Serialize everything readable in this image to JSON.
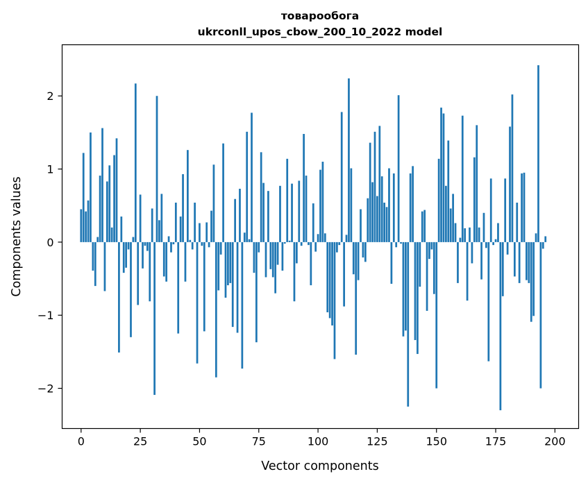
{
  "chart_data": {
    "type": "bar",
    "title": "товарообога",
    "subtitle": "ukrconll_upos_cbow_200_10_2022 model",
    "xlabel": "Vector components",
    "ylabel": "Components values",
    "xlim": [
      -8,
      210
    ],
    "ylim": [
      -2.55,
      2.7
    ],
    "xticks": [
      0,
      25,
      50,
      75,
      100,
      125,
      150,
      175,
      200
    ],
    "yticks": [
      -2,
      -1,
      0,
      1,
      2
    ],
    "ytick_labels": [
      "−2",
      "−1",
      "0",
      "1",
      "2"
    ],
    "grid": false,
    "bar_color": "#1f77b4",
    "x_start": 0,
    "values": [
      0.45,
      1.22,
      0.42,
      0.57,
      1.5,
      -0.39,
      -0.6,
      0.07,
      0.91,
      1.56,
      -0.67,
      0.83,
      1.05,
      0.2,
      1.19,
      1.42,
      -1.51,
      0.35,
      -0.42,
      -0.35,
      -0.1,
      -1.3,
      0.07,
      2.17,
      -0.86,
      0.65,
      -0.36,
      -0.05,
      -0.12,
      -0.81,
      0.46,
      -2.09,
      2.0,
      0.3,
      0.66,
      -0.47,
      -0.54,
      0.08,
      -0.14,
      -0.03,
      0.54,
      -1.25,
      0.35,
      0.93,
      -0.54,
      1.26,
      0.03,
      -0.1,
      0.54,
      -1.66,
      0.26,
      -0.05,
      -1.22,
      0.27,
      -0.07,
      0.43,
      1.06,
      -1.85,
      -0.66,
      -0.17,
      1.35,
      -0.76,
      -0.59,
      -0.56,
      -1.16,
      0.59,
      -1.24,
      0.73,
      -1.73,
      0.13,
      1.51,
      0.04,
      1.77,
      -0.42,
      -1.37,
      -0.14,
      1.23,
      0.81,
      -0.48,
      0.7,
      -0.37,
      -0.48,
      -0.7,
      -0.31,
      0.77,
      -0.39,
      -0.02,
      1.14,
      0.02,
      0.8,
      -0.81,
      -0.29,
      0.84,
      -0.05,
      1.48,
      0.91,
      -0.04,
      -0.59,
      0.53,
      -0.13,
      0.11,
      0.99,
      1.1,
      0.12,
      -0.96,
      -1.04,
      -1.14,
      -1.6,
      -0.14,
      -0.04,
      1.78,
      -0.88,
      0.1,
      2.24,
      1.01,
      -0.44,
      -1.54,
      -0.52,
      0.45,
      -0.21,
      -0.27,
      0.6,
      1.36,
      0.82,
      1.51,
      0.63,
      1.59,
      0.9,
      0.54,
      0.48,
      1.01,
      -0.57,
      0.94,
      -0.07,
      2.01,
      -0.02,
      -1.29,
      -1.21,
      -2.25,
      0.94,
      1.04,
      -1.34,
      -1.53,
      -0.61,
      0.42,
      0.44,
      -0.94,
      -0.23,
      -0.1,
      -0.71,
      -2.0,
      1.14,
      1.84,
      1.76,
      0.77,
      1.39,
      0.46,
      0.66,
      0.26,
      -0.56,
      0.06,
      1.73,
      0.19,
      -0.8,
      0.2,
      -0.29,
      1.16,
      1.6,
      0.2,
      -0.51,
      0.4,
      -0.08,
      -1.63,
      0.87,
      -0.04,
      0.04,
      0.26,
      -2.3,
      -0.74,
      0.87,
      -0.17,
      1.58,
      2.02,
      -0.47,
      0.54,
      -0.56,
      0.94,
      0.95,
      -0.52,
      -0.56,
      -1.09,
      -1.01,
      0.12,
      2.42,
      -2.0,
      -0.09,
      0.08
    ]
  }
}
